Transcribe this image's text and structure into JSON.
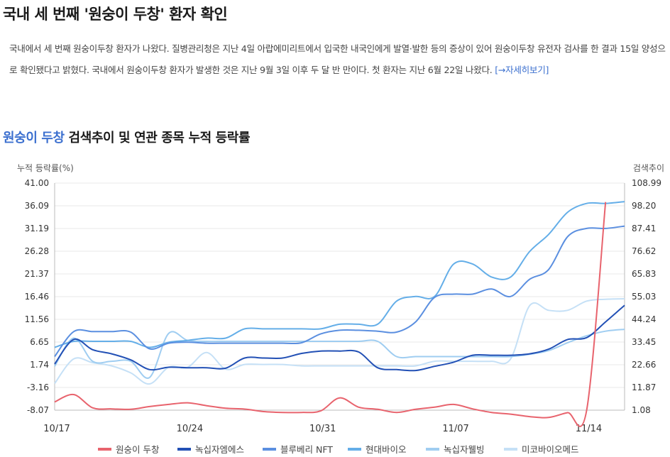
{
  "article": {
    "headline": "국내 세 번째 '원숭이 두창' 환자 확인",
    "summary": "국내에서 세 번째 원숭이두창 환자가 나왔다. 질병관리청은 지난 4일 아랍에미리트에서 입국한 내국인에게 발열·발한 등의 증상이 있어 원숭이두창 유전자 검사를 한 결과 15일 양성으로 확인됐다고 밝혔다. 국내에서 원숭이두창 환자가 발생한 것은 지난 9월 3일 이후 두 달 반 만이다. 첫 환자는 지난 6월 22일 나왔다.",
    "more_link": "[→자세히보기]"
  },
  "chart_title": {
    "keyword": "원숭이 두창",
    "rest": " 검색추이 및 연관 종목 누적 등락률"
  },
  "chart_data": {
    "type": "line",
    "y_left_label": "누적 등락률(%)",
    "y_right_label": "검색추이",
    "y_left_ticks": [
      "41.00",
      "36.09",
      "31.19",
      "26.28",
      "21.37",
      "16.46",
      "11.56",
      "6.65",
      "1.74",
      "-3.16",
      "-8.07"
    ],
    "y_right_ticks": [
      "108.99",
      "98.20",
      "87.41",
      "76.62",
      "65.83",
      "55.03",
      "44.24",
      "33.45",
      "22.66",
      "11.87",
      "1.08"
    ],
    "ylim_left": [
      -8.07,
      41.0
    ],
    "ylim_right": [
      1.08,
      108.99
    ],
    "x_tick_labels": [
      "10/17",
      "10/24",
      "10/31",
      "11/07",
      "11/14"
    ],
    "x_tick_index": [
      0,
      7,
      14,
      21,
      28
    ],
    "grid": true,
    "legend_position": "bottom",
    "series": [
      {
        "name": "원숭이 두창",
        "axis": "right",
        "color": "#e8636d",
        "values": [
          5,
          8.5,
          2.2,
          1.7,
          1.5,
          2.8,
          3.8,
          4.6,
          3.2,
          2,
          1.6,
          0.4,
          0,
          0,
          0.7,
          6.9,
          2.5,
          1.5,
          0,
          1.5,
          2.5,
          3.8,
          1.7,
          0,
          -0.8,
          -2,
          -2.4,
          -0.1,
          0.9,
          100,
          null
        ]
      },
      {
        "name": "녹십자엠에스",
        "axis": "left",
        "color": "#2250b5",
        "values": [
          1.9,
          7.2,
          5,
          4.1,
          2.8,
          0.7,
          1.2,
          1.1,
          1.1,
          1,
          3.2,
          3.2,
          3.2,
          4.2,
          4.7,
          4.7,
          4.5,
          1.1,
          0.7,
          0.5,
          1.4,
          2.3,
          3.8,
          3.8,
          3.8,
          4.1,
          5.1,
          7.2,
          7.6,
          11,
          14.6
        ]
      },
      {
        "name": "블루베리 NFT",
        "axis": "left",
        "color": "#5b8fe0",
        "values": [
          3.5,
          8.9,
          8.9,
          8.9,
          8.8,
          5.2,
          6.4,
          6.6,
          6.4,
          6.4,
          6.4,
          6.4,
          6.4,
          6.5,
          8.4,
          9.2,
          9.2,
          9,
          8.8,
          11,
          16.3,
          17,
          17,
          18.1,
          16.5,
          20.2,
          22.3,
          29.4,
          31.2,
          31.2,
          31.7
        ]
      },
      {
        "name": "현대바이오",
        "axis": "left",
        "color": "#64aee8",
        "values": [
          5.5,
          6.8,
          6.8,
          6.8,
          6.8,
          5.5,
          6.6,
          7,
          7.5,
          7.5,
          9.5,
          9.5,
          9.5,
          9.5,
          9.5,
          10.5,
          10.5,
          10.5,
          15.5,
          16.5,
          16.5,
          23.5,
          23.5,
          20.7,
          20.7,
          26.2,
          29.9,
          34.7,
          36.6,
          36.6,
          37
        ]
      },
      {
        "name": "녹십자웰빙",
        "axis": "left",
        "color": "#9fcdf1",
        "values": [
          1.4,
          7.5,
          2.5,
          2.5,
          2.5,
          -1,
          8.5,
          7,
          6.8,
          6.8,
          6.8,
          6.8,
          6.8,
          6.8,
          6.8,
          6.8,
          6.8,
          6.8,
          3.5,
          3.5,
          3.5,
          3.5,
          3.5,
          3.5,
          3.5,
          4,
          4.8,
          6.5,
          8,
          9,
          9.4
        ]
      },
      {
        "name": "미코바이오메드",
        "axis": "left",
        "color": "#c5e0f6",
        "values": [
          -2.3,
          3,
          2.2,
          1.5,
          0,
          -2.4,
          1.2,
          1.2,
          4.4,
          0.8,
          1.8,
          1.8,
          1.8,
          1.5,
          1.5,
          1.5,
          1.5,
          1.5,
          1.5,
          1.5,
          2.5,
          2.5,
          2.5,
          2.5,
          3,
          14.5,
          13.5,
          13.5,
          15.5,
          15.9,
          16
        ]
      }
    ]
  }
}
